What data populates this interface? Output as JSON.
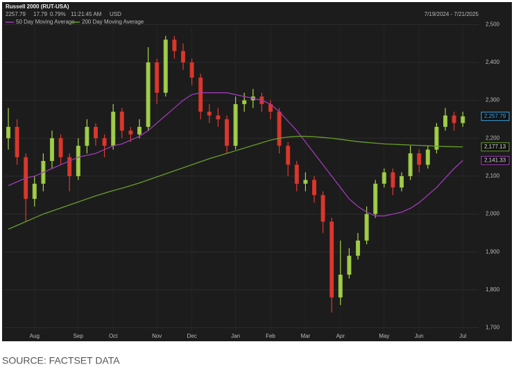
{
  "chart_data": {
    "type": "candlestick",
    "title": "Russell 2000 (RUT-USA)",
    "quote": {
      "last": "2257.79",
      "change": "17.79",
      "change_pct": "0.79%",
      "time": "11:21:45 AM",
      "currency": "USD"
    },
    "date_range": "7/19/2024 - 7/21/2025",
    "source": "SOURCE: FACTSET DATA",
    "categories": [
      null,
      null,
      null,
      "Aug",
      null,
      null,
      null,
      null,
      "Sep",
      null,
      null,
      null,
      "Oct",
      null,
      null,
      null,
      null,
      "Nov",
      null,
      null,
      null,
      "Dec",
      null,
      null,
      null,
      null,
      "Jan",
      null,
      null,
      null,
      "Feb",
      null,
      null,
      null,
      "Mar",
      null,
      null,
      null,
      "Apr",
      null,
      null,
      null,
      null,
      "May",
      null,
      null,
      null,
      "Jun",
      null,
      null,
      null,
      null,
      "Jul"
    ],
    "open": [
      2200,
      2230,
      2150,
      2040,
      2080,
      2140,
      2200,
      2150,
      2100,
      2180,
      2230,
      2200,
      2180,
      2270,
      2220,
      2210,
      2230,
      2400,
      2320,
      2460,
      2430,
      2400,
      2360,
      2270,
      2260,
      2250,
      2180,
      2290,
      2300,
      2310,
      2290,
      2270,
      2180,
      2130,
      2080,
      2090,
      2050,
      1980,
      1780,
      1840,
      1890,
      1930,
      2000,
      2080,
      2110,
      2070,
      2100,
      2160,
      2130,
      2170,
      2230,
      2260,
      2240
    ],
    "high": [
      2280,
      2250,
      2160,
      2100,
      2160,
      2220,
      2210,
      2160,
      2200,
      2250,
      2240,
      2210,
      2290,
      2280,
      2230,
      2250,
      2440,
      2410,
      2470,
      2470,
      2450,
      2410,
      2370,
      2290,
      2280,
      2260,
      2310,
      2320,
      2330,
      2320,
      2300,
      2280,
      2190,
      2140,
      2110,
      2100,
      2060,
      1990,
      1930,
      1910,
      1950,
      2020,
      2090,
      2120,
      2120,
      2110,
      2180,
      2170,
      2180,
      2240,
      2280,
      2270,
      2270
    ],
    "low": [
      2170,
      2130,
      1980,
      2020,
      2060,
      2120,
      2130,
      2060,
      2090,
      2160,
      2180,
      2150,
      2170,
      2200,
      2190,
      2200,
      2220,
      2290,
      2310,
      2410,
      2380,
      2340,
      2250,
      2240,
      2230,
      2160,
      2170,
      2270,
      2280,
      2270,
      2250,
      2160,
      2100,
      2060,
      2060,
      2030,
      1950,
      1740,
      1760,
      1830,
      1880,
      1920,
      1990,
      2070,
      2050,
      2060,
      2090,
      2110,
      2120,
      2160,
      2220,
      2220,
      2230
    ],
    "close": [
      2230,
      2150,
      2040,
      2080,
      2140,
      2200,
      2150,
      2100,
      2180,
      2230,
      2200,
      2180,
      2270,
      2220,
      2210,
      2230,
      2400,
      2320,
      2460,
      2430,
      2400,
      2360,
      2270,
      2260,
      2250,
      2180,
      2290,
      2300,
      2310,
      2290,
      2270,
      2180,
      2130,
      2080,
      2090,
      2050,
      1980,
      1780,
      1840,
      1890,
      1930,
      2000,
      2080,
      2110,
      2070,
      2100,
      2160,
      2130,
      2170,
      2230,
      2260,
      2240,
      2257.79
    ],
    "last_label": "2,257.79",
    "last_color": "#3aa6e8",
    "up_color": "#a8d84a",
    "down_color": "#e8382c",
    "series": [
      {
        "name": "50 Day Moving Average",
        "color": "#a03ab8",
        "last_label": "2,141.33",
        "values": [
          2075,
          2085,
          2095,
          2100,
          2110,
          2120,
          2130,
          2140,
          2150,
          2155,
          2160,
          2170,
          2180,
          2185,
          2195,
          2205,
          2220,
          2240,
          2260,
          2280,
          2300,
          2315,
          2320,
          2320,
          2320,
          2320,
          2315,
          2310,
          2305,
          2300,
          2290,
          2270,
          2245,
          2220,
          2190,
          2160,
          2130,
          2100,
          2070,
          2040,
          2020,
          2005,
          1995,
          1995,
          2000,
          2005,
          2015,
          2030,
          2050,
          2070,
          2095,
          2120,
          2141.33
        ]
      },
      {
        "name": "200 Day Moving Average",
        "color": "#6a9e2a",
        "last_label": "2,177.13",
        "values": [
          1960,
          1970,
          1980,
          1990,
          2000,
          2008,
          2016,
          2024,
          2032,
          2040,
          2048,
          2055,
          2062,
          2068,
          2075,
          2082,
          2090,
          2098,
          2106,
          2114,
          2122,
          2130,
          2138,
          2146,
          2153,
          2160,
          2167,
          2174,
          2181,
          2188,
          2195,
          2200,
          2203,
          2205,
          2205,
          2204,
          2202,
          2200,
          2197,
          2194,
          2191,
          2189,
          2187,
          2185,
          2184,
          2183,
          2182,
          2181,
          2180,
          2179,
          2178,
          2177.5,
          2177.13
        ]
      }
    ],
    "ylim": [
      1690,
      2550
    ],
    "yticks": [
      {
        "value": 1700,
        "label": "1,700"
      },
      {
        "value": 1800,
        "label": "1,800"
      },
      {
        "value": 1900,
        "label": "1,900"
      },
      {
        "value": 2000,
        "label": "2,000"
      },
      {
        "value": 2100,
        "label": "2,100"
      },
      {
        "value": 2200,
        "label": "2,200"
      },
      {
        "value": 2300,
        "label": "2,300"
      },
      {
        "value": 2400,
        "label": "2,400"
      },
      {
        "value": 2500,
        "label": "2,500"
      }
    ],
    "grid": true
  }
}
